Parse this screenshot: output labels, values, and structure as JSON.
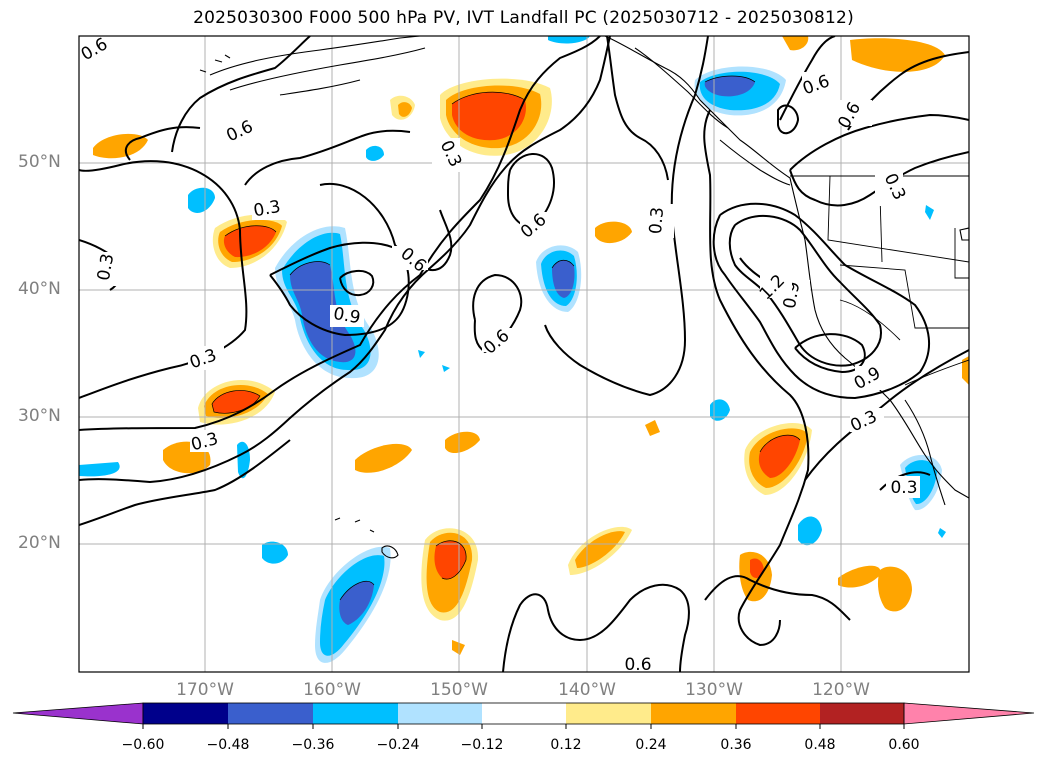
{
  "title": "2025030300 F000 500 hPa PV, IVT Landfall PC (2025030712 - 2025030812)",
  "map": {
    "lat_labels": [
      "50°N",
      "40°N",
      "30°N",
      "20°N"
    ],
    "lon_labels": [
      "170°W",
      "160°W",
      "150°W",
      "140°W",
      "130°W",
      "120°W"
    ],
    "contour_labels": [
      "0.6",
      "0.6",
      "0.6",
      "0.6",
      "0.6",
      "0.6",
      "0.6",
      "0.3",
      "0.3",
      "0.3",
      "0.3",
      "0.3",
      "0.3",
      "0.3",
      "0.3",
      "0.3",
      "0.6",
      "0.9",
      "0.9",
      "1.2",
      "0.9",
      "0.3",
      "0.3",
      "0.6"
    ]
  },
  "colorbar": {
    "ticks": [
      "−0.60",
      "−0.48",
      "−0.36",
      "−0.24",
      "−0.12",
      "0.12",
      "0.24",
      "0.36",
      "0.48",
      "0.60"
    ],
    "colors": [
      "#9a32cd",
      "#00008b",
      "#3a5fcd",
      "#00bfff",
      "#b0e2ff",
      "#ffffff",
      "#ffeb8b",
      "#ffa500",
      "#ff4500",
      "#b22222",
      "#ff82ab"
    ]
  }
}
